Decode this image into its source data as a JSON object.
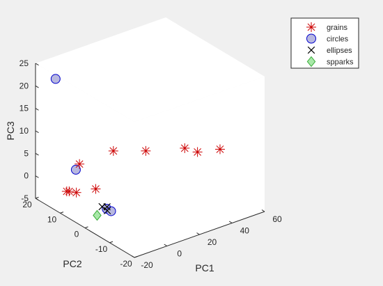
{
  "chart_data": {
    "type": "scatter3d",
    "title": "",
    "xlabel": "PC1",
    "ylabel": "PC2",
    "zlabel": "PC3",
    "xlim": [
      -20,
      60
    ],
    "ylim": [
      -20,
      20
    ],
    "zlim": [
      -5,
      25
    ],
    "xticks": [
      "-20",
      "0",
      "20",
      "40",
      "60"
    ],
    "yticks": [
      "-20",
      "-10",
      "0",
      "10",
      "20"
    ],
    "zticks": [
      "-5",
      "0",
      "5",
      "10",
      "15",
      "20",
      "25"
    ],
    "grid": false,
    "legend_position": "top-right",
    "series": [
      {
        "name": "grains",
        "marker": "asterisk",
        "color": "#cc0000",
        "points": [
          [
            -8.9,
            13.7,
            -2.8
          ],
          [
            -7.5,
            15.6,
            -3.6
          ],
          [
            -9.5,
            10.4,
            -1.9
          ],
          [
            -2.3,
            7.3,
            -1.0
          ],
          [
            -1.8,
            14.2,
            2.2
          ],
          [
            12.5,
            9.9,
            4.7
          ],
          [
            23.6,
            4.1,
            5.2
          ],
          [
            37.8,
            -2.3,
            6.1
          ],
          [
            42.0,
            -4.7,
            5.5
          ],
          [
            52.2,
            -7.1,
            5.6
          ]
        ]
      },
      {
        "name": "circles",
        "marker": "circle",
        "color": "#0000cc",
        "fill": "#b8b8e0",
        "points": [
          [
            -6.9,
            20.5,
            19.7
          ],
          [
            -5.7,
            13.1,
            1.8
          ],
          [
            -3.9,
            1.8,
            -3.4
          ],
          [
            -2.6,
            0.9,
            -3.8
          ]
        ]
      },
      {
        "name": "ellipses",
        "marker": "x",
        "color": "#000000",
        "points": [
          [
            -4.6,
            3.2,
            -3.3
          ],
          [
            -2.5,
            2.6,
            -3.4
          ],
          [
            -4.0,
            1.5,
            -3.7
          ]
        ]
      },
      {
        "name": "spparks",
        "marker": "diamond",
        "color": "#33aa33",
        "fill": "#a8e8a8",
        "points": [
          [
            -6.9,
            3.7,
            -5.1
          ]
        ]
      }
    ]
  }
}
